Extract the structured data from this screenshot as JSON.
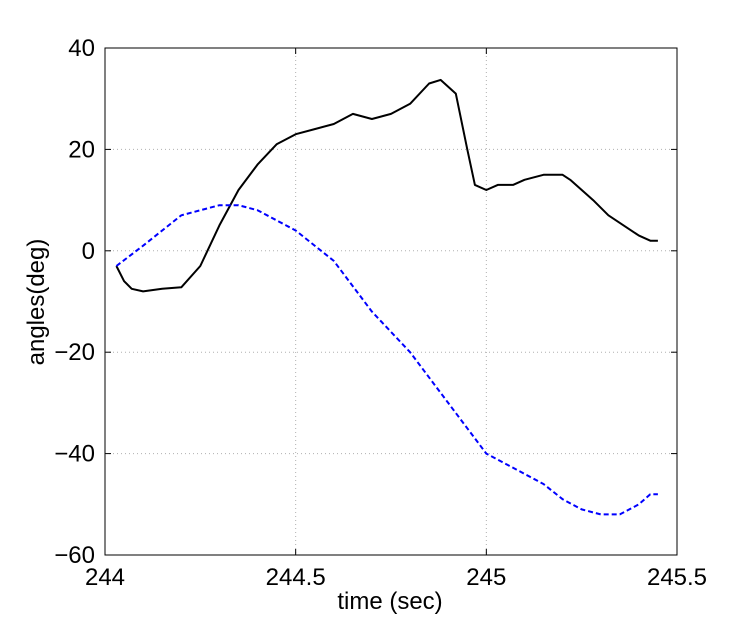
{
  "chart_data": {
    "type": "line",
    "title": "",
    "xlabel": "time (sec)",
    "ylabel": "angles(deg)",
    "xlim": [
      244,
      245.5
    ],
    "ylim": [
      -60,
      40
    ],
    "xticks": [
      244,
      244.5,
      245,
      245.5
    ],
    "xtick_labels": [
      "244",
      "244.5",
      "245",
      "245.5"
    ],
    "yticks": [
      -60,
      -40,
      -20,
      0,
      20,
      40
    ],
    "ytick_labels": [
      "−60",
      "−40",
      "−20",
      "0",
      "20",
      "40"
    ],
    "grid": true,
    "legend": "none",
    "series": [
      {
        "color": "#000000",
        "style": "solid",
        "x": [
          244.03,
          244.05,
          244.07,
          244.1,
          244.15,
          244.2,
          244.25,
          244.3,
          244.35,
          244.4,
          244.45,
          244.5,
          244.55,
          244.6,
          244.65,
          244.7,
          244.75,
          244.8,
          244.85,
          244.88,
          244.92,
          244.95,
          244.97,
          245.0,
          245.03,
          245.07,
          245.1,
          245.15,
          245.2,
          245.22,
          245.28,
          245.32,
          245.36,
          245.4,
          245.43,
          245.45
        ],
        "y": [
          -3,
          -6,
          -7.5,
          -8,
          -7.5,
          -7.2,
          -3,
          5,
          12,
          17,
          21,
          23,
          24,
          25,
          27,
          26,
          27,
          29,
          33,
          33.7,
          31,
          20,
          13,
          12,
          13,
          13,
          14,
          15,
          15,
          14,
          10,
          7,
          5,
          3,
          2,
          2
        ]
      },
      {
        "color": "#0000ff",
        "style": "dashed",
        "x": [
          244.03,
          244.1,
          244.2,
          244.3,
          244.35,
          244.4,
          244.5,
          244.6,
          244.7,
          244.8,
          244.9,
          244.95,
          245.0,
          245.05,
          245.1,
          245.15,
          245.2,
          245.25,
          245.3,
          245.35,
          245.4,
          245.43,
          245.45
        ],
        "y": [
          -3,
          1,
          7,
          9,
          9,
          8,
          4,
          -2,
          -12,
          -20,
          -30,
          -35,
          -40,
          -42,
          -44,
          -46,
          -49,
          -51,
          -52,
          -52,
          -50,
          -48,
          -48
        ]
      }
    ]
  }
}
